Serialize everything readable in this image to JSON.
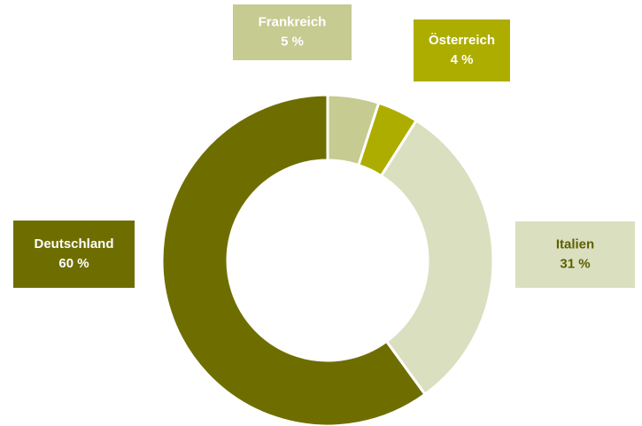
{
  "chart_data": {
    "type": "donut",
    "categories": [
      "Frankreich",
      "Österreich",
      "Italien",
      "Deutschland"
    ],
    "values": [
      5,
      4,
      31,
      60
    ],
    "value_labels": [
      "5 %",
      "4 %",
      "31 %",
      "60 %"
    ],
    "colors": [
      "#c5cb91",
      "#adad00",
      "#dadfc0",
      "#6e6e00"
    ]
  }
}
